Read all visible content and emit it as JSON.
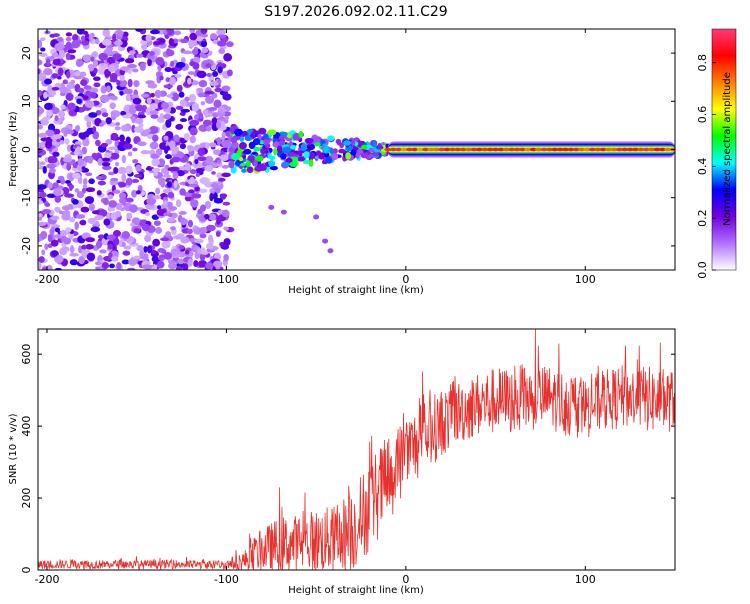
{
  "title": "S197.2026.092.02.11.C29",
  "chart_data": [
    {
      "type": "heatmap",
      "xlabel": "Height of straight line (km)",
      "ylabel": "Frequency (Hz)",
      "xlim": [
        -205,
        150
      ],
      "ylim": [
        -25,
        25
      ],
      "xticks": [
        -200,
        -100,
        0,
        100
      ],
      "yticks": [
        -20,
        -10,
        0,
        10,
        20
      ],
      "regions": [
        {
          "name": "noise",
          "x_range": [
            -205,
            -98
          ],
          "y_range": [
            -25,
            25
          ],
          "amplitude": 0.25
        },
        {
          "name": "scatter",
          "x_range": [
            -98,
            -10
          ],
          "y_range": [
            -6,
            5
          ],
          "amplitude": 0.35
        },
        {
          "name": "streak",
          "x_range": [
            -10,
            150
          ],
          "y_center": 0,
          "amplitude": 0.9
        }
      ],
      "colorbar": {
        "label": "Normalized spectral amplitude",
        "min": 0,
        "max": 0.93,
        "ticks": [
          "0.0",
          "0.2",
          "0.4",
          "0.6",
          "0.8"
        ],
        "colors": [
          "#ffffff",
          "#b070ff",
          "#7000e0",
          "#0000ff",
          "#00ffff",
          "#00ff00",
          "#ffff00",
          "#ff8000",
          "#ff0000",
          "#ff3a7c"
        ]
      }
    },
    {
      "type": "line",
      "xlabel": "Height of straight line (km)",
      "ylabel": "SNR (10 * v/v)",
      "xlim": [
        -205,
        150
      ],
      "ylim": [
        0,
        670
      ],
      "xticks": [
        -200,
        -100,
        0,
        100
      ],
      "yticks": [
        0,
        200,
        400,
        600
      ],
      "color": "#e8302c",
      "series": [
        {
          "name": "SNR",
          "x": [
            -205,
            -190,
            -175,
            -160,
            -145,
            -130,
            -115,
            -100,
            -90,
            -80,
            -70,
            -60,
            -50,
            -40,
            -30,
            -20,
            -10,
            0,
            10,
            20,
            30,
            40,
            50,
            60,
            70,
            80,
            90,
            100,
            110,
            120,
            130,
            140,
            150
          ],
          "y": [
            15,
            16,
            15,
            16,
            15,
            16,
            15,
            15,
            25,
            55,
            70,
            75,
            80,
            85,
            110,
            180,
            250,
            320,
            370,
            410,
            440,
            460,
            470,
            470,
            480,
            480,
            460,
            450,
            470,
            480,
            480,
            470,
            470
          ],
          "y_spread": [
            25,
            25,
            25,
            25,
            25,
            25,
            25,
            25,
            60,
            120,
            160,
            160,
            180,
            190,
            240,
            260,
            250,
            220,
            200,
            190,
            180,
            180,
            190,
            190,
            190,
            180,
            180,
            170,
            170,
            180,
            180,
            190,
            170
          ]
        }
      ]
    }
  ]
}
